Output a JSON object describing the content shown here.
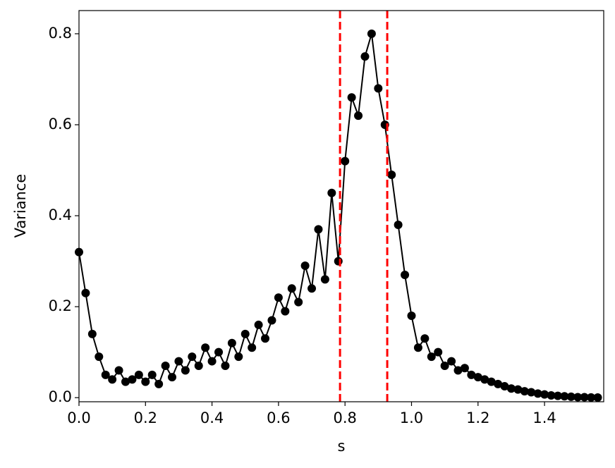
{
  "chart_data": {
    "type": "line",
    "x_label": "s",
    "y_label": "Variance",
    "x": [
      0,
      0.02,
      0.04,
      0.06,
      0.08,
      0.1,
      0.12,
      0.14,
      0.16,
      0.18,
      0.2,
      0.22,
      0.24,
      0.26,
      0.28,
      0.3,
      0.32,
      0.34,
      0.36,
      0.38,
      0.4,
      0.42,
      0.44,
      0.46,
      0.48,
      0.5,
      0.52,
      0.54,
      0.56,
      0.58,
      0.6,
      0.62,
      0.64,
      0.66,
      0.68,
      0.7,
      0.72,
      0.74,
      0.76,
      0.78,
      0.8,
      0.82,
      0.84,
      0.86,
      0.88,
      0.9,
      0.92,
      0.94,
      0.96,
      0.98,
      1.0,
      1.02,
      1.04,
      1.06,
      1.08,
      1.1,
      1.12,
      1.14,
      1.16,
      1.18,
      1.2,
      1.22,
      1.24,
      1.26,
      1.28,
      1.3,
      1.32,
      1.34,
      1.36,
      1.38,
      1.4,
      1.42,
      1.44,
      1.46,
      1.48,
      1.5,
      1.52,
      1.54,
      1.56
    ],
    "series": [
      {
        "name": "Variance",
        "color": "#000000",
        "values": [
          0.32,
          0.23,
          0.14,
          0.09,
          0.05,
          0.04,
          0.06,
          0.035,
          0.04,
          0.05,
          0.035,
          0.05,
          0.03,
          0.07,
          0.045,
          0.08,
          0.06,
          0.09,
          0.07,
          0.11,
          0.08,
          0.1,
          0.07,
          0.12,
          0.09,
          0.14,
          0.11,
          0.16,
          0.13,
          0.17,
          0.22,
          0.19,
          0.24,
          0.21,
          0.29,
          0.24,
          0.37,
          0.26,
          0.45,
          0.3,
          0.52,
          0.66,
          0.62,
          0.75,
          0.8,
          0.68,
          0.6,
          0.49,
          0.38,
          0.27,
          0.18,
          0.11,
          0.13,
          0.09,
          0.1,
          0.07,
          0.08,
          0.06,
          0.065,
          0.05,
          0.045,
          0.04,
          0.035,
          0.03,
          0.025,
          0.02,
          0.018,
          0.014,
          0.012,
          0.009,
          0.007,
          0.005,
          0.004,
          0.003,
          0.002,
          0.001,
          0.001,
          0.0005,
          0.0003
        ]
      }
    ],
    "vlines": [
      0.785,
      0.927
    ],
    "vline_color": "#ff0000",
    "xlim": [
      0,
      1.578
    ],
    "ylim": [
      -0.009,
      0.851
    ],
    "xticks": [
      {
        "value": 0,
        "label": "0.0"
      },
      0.2,
      0.4,
      0.6,
      0.8,
      {
        "value": 1,
        "label": "1.0"
      },
      1.2,
      1.4
    ],
    "yticks": [
      {
        "value": 0,
        "label": "0.0"
      },
      0.2,
      0.4,
      0.6,
      0.8
    ],
    "grid": false
  }
}
